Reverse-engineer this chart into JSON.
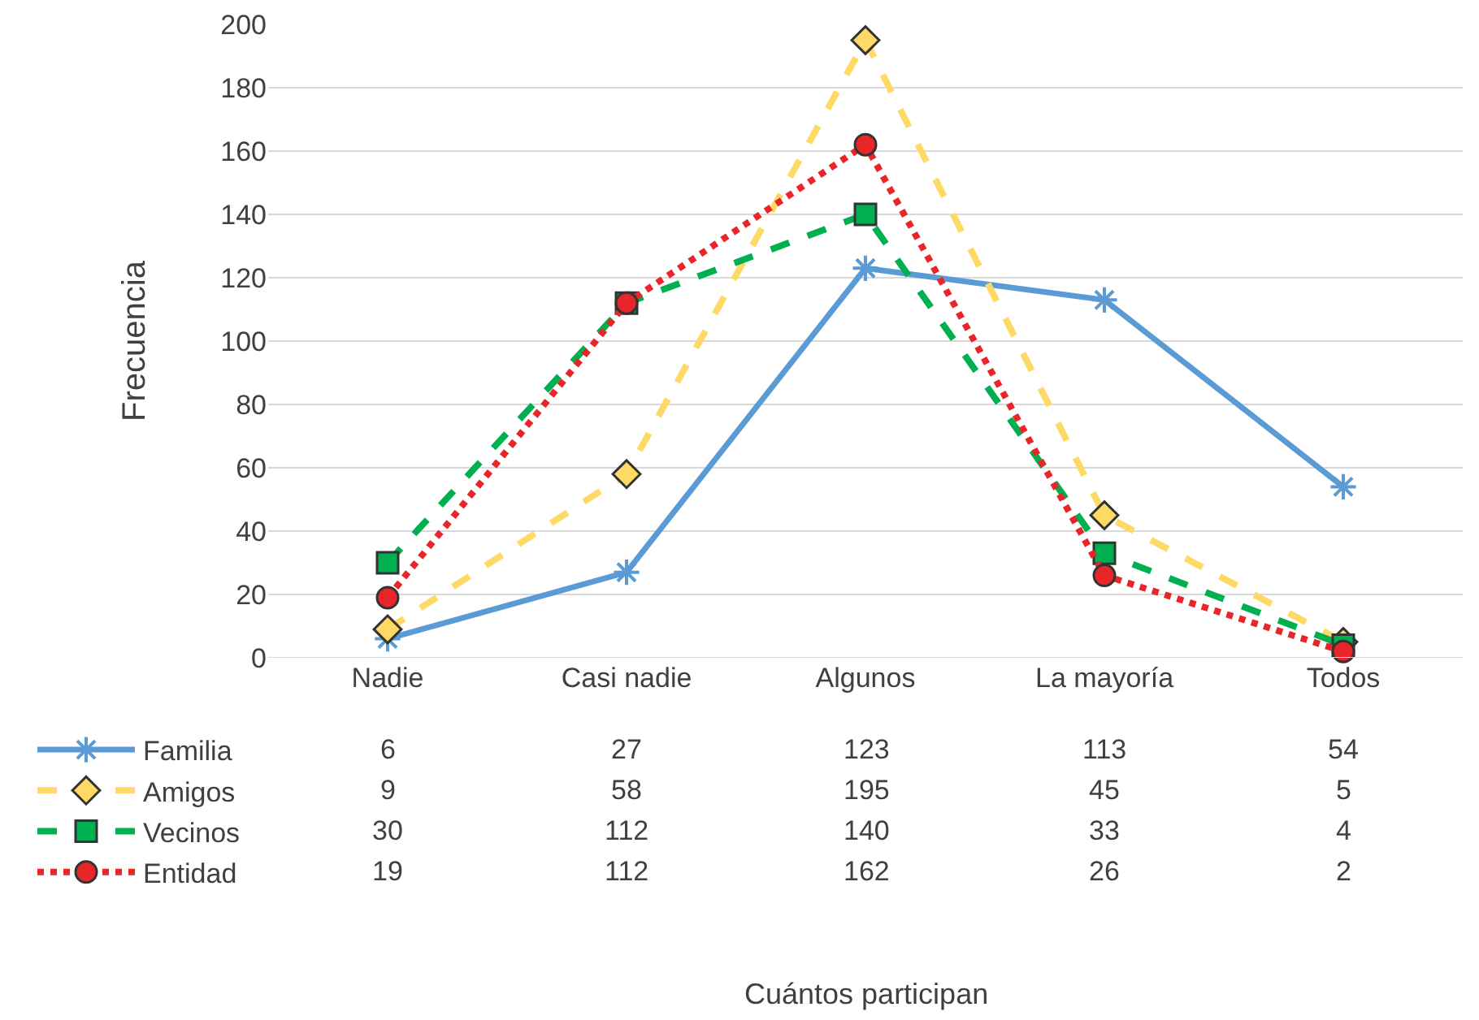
{
  "chart_data": {
    "type": "line",
    "annotations": [
      "Cuántos participan"
    ],
    "ylabel": "Frecuencia",
    "categories": [
      "Nadie",
      "Casi nadie",
      "Algunos",
      "La mayoría",
      "Todos"
    ],
    "series": [
      {
        "name": "Familia",
        "color": "#5b9bd5",
        "values": [
          6,
          27,
          123,
          113,
          54
        ],
        "marker": "cross",
        "line_style": "solid"
      },
      {
        "name": "Amigos",
        "color": "#ffd966",
        "values": [
          9,
          58,
          195,
          45,
          5
        ],
        "marker": "diamond",
        "line_style": "dashed"
      },
      {
        "name": "Vecinos",
        "color": "#00b050",
        "values": [
          30,
          112,
          140,
          33,
          4
        ],
        "marker": "square",
        "line_style": "dashed"
      },
      {
        "name": "Entidad",
        "color": "#e8262a",
        "values": [
          19,
          112,
          162,
          26,
          2
        ],
        "marker": "circle",
        "line_style": "dotted"
      }
    ],
    "ylim": [
      0,
      200
    ],
    "yticks": [
      0,
      20,
      40,
      60,
      80,
      100,
      120,
      140,
      160,
      180,
      200
    ],
    "grid": "y",
    "legend": "bottom left",
    "data_labels": true
  }
}
